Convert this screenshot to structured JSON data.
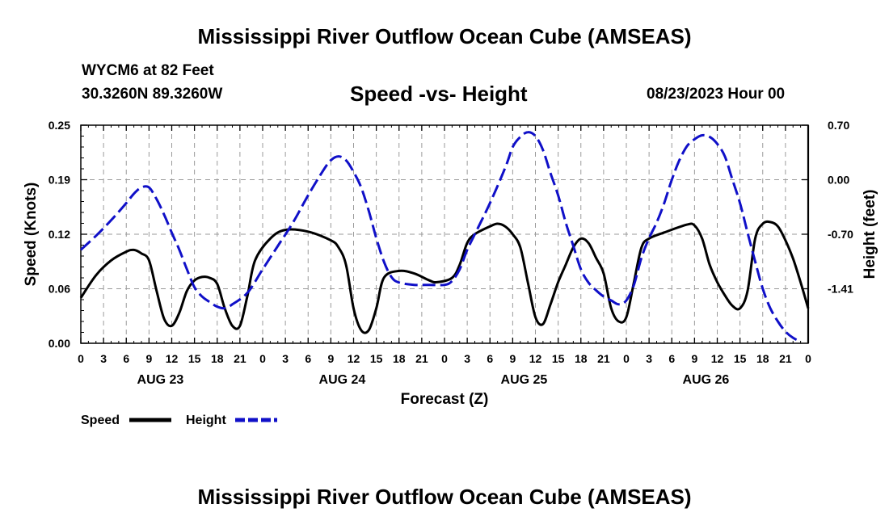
{
  "chart_data": {
    "type": "line",
    "title": "Mississippi River Outflow Ocean Cube (AMSEAS)",
    "footer_title": "Mississippi River Outflow Ocean Cube (AMSEAS)",
    "subtitle": "Speed -vs- Height",
    "station": "WYCM6 at 82 Feet",
    "coordinates": "30.3260N  89.3260W",
    "datetime": "08/23/2023 Hour 00",
    "xlabel": "Forecast (Z)",
    "ylabel_left": "Speed (Knots)",
    "ylabel_right": "Height (feet)",
    "xlim": [
      0,
      96
    ],
    "ylim_left": [
      0,
      0.25
    ],
    "ylim_right": [
      -2.1,
      0.7
    ],
    "x_tick_labels": [
      "0",
      "3",
      "6",
      "9",
      "12",
      "15",
      "18",
      "21",
      "0",
      "3",
      "6",
      "9",
      "12",
      "15",
      "18",
      "21",
      "0",
      "3",
      "6",
      "9",
      "12",
      "15",
      "18",
      "21",
      "0",
      "3",
      "6",
      "9",
      "12",
      "15",
      "18",
      "21",
      "0"
    ],
    "y_left_ticks": [
      "0.00",
      "0.06",
      "0.12",
      "0.19",
      "0.25"
    ],
    "y_right_ticks": [
      "-1.41",
      "-0.70",
      "0.00",
      "0.70"
    ],
    "date_labels": [
      "AUG 23",
      "AUG 24",
      "AUG 25",
      "AUG 26"
    ],
    "legend": [
      {
        "name": "Speed",
        "color": "#000000",
        "dash": "solid"
      },
      {
        "name": "Height",
        "color": "#1010c8",
        "dash": "dashed"
      }
    ],
    "series": [
      {
        "name": "Speed",
        "axis": "left",
        "color": "#000000",
        "points": [
          [
            0,
            0.052
          ],
          [
            2,
            0.078
          ],
          [
            4,
            0.095
          ],
          [
            6,
            0.105
          ],
          [
            7,
            0.107
          ],
          [
            8,
            0.103
          ],
          [
            9,
            0.095
          ],
          [
            10,
            0.06
          ],
          [
            11,
            0.028
          ],
          [
            12,
            0.02
          ],
          [
            13,
            0.035
          ],
          [
            14,
            0.06
          ],
          [
            15,
            0.072
          ],
          [
            16,
            0.076
          ],
          [
            17,
            0.075
          ],
          [
            18,
            0.068
          ],
          [
            19,
            0.04
          ],
          [
            20,
            0.02
          ],
          [
            21,
            0.02
          ],
          [
            22,
            0.055
          ],
          [
            23,
            0.095
          ],
          [
            25,
            0.12
          ],
          [
            27,
            0.13
          ],
          [
            30,
            0.128
          ],
          [
            33,
            0.118
          ],
          [
            34,
            0.11
          ],
          [
            35,
            0.09
          ],
          [
            36,
            0.04
          ],
          [
            37,
            0.015
          ],
          [
            38,
            0.015
          ],
          [
            39,
            0.04
          ],
          [
            40,
            0.075
          ],
          [
            42,
            0.083
          ],
          [
            44,
            0.08
          ],
          [
            46,
            0.072
          ],
          [
            47,
            0.07
          ],
          [
            49,
            0.075
          ],
          [
            50,
            0.09
          ],
          [
            51,
            0.115
          ],
          [
            52,
            0.125
          ],
          [
            54,
            0.134
          ],
          [
            55,
            0.137
          ],
          [
            56,
            0.134
          ],
          [
            57,
            0.125
          ],
          [
            58,
            0.11
          ],
          [
            59,
            0.07
          ],
          [
            60,
            0.03
          ],
          [
            61,
            0.022
          ],
          [
            62,
            0.045
          ],
          [
            63,
            0.07
          ],
          [
            64,
            0.09
          ],
          [
            65,
            0.11
          ],
          [
            66,
            0.12
          ],
          [
            67,
            0.115
          ],
          [
            68,
            0.098
          ],
          [
            69,
            0.08
          ],
          [
            70,
            0.04
          ],
          [
            71,
            0.025
          ],
          [
            72,
            0.03
          ],
          [
            73,
            0.07
          ],
          [
            74,
            0.11
          ],
          [
            75,
            0.12
          ],
          [
            77,
            0.127
          ],
          [
            80,
            0.136
          ],
          [
            81,
            0.135
          ],
          [
            82,
            0.12
          ],
          [
            83,
            0.09
          ],
          [
            84,
            0.07
          ],
          [
            85,
            0.055
          ],
          [
            86,
            0.043
          ],
          [
            87,
            0.04
          ],
          [
            88,
            0.06
          ],
          [
            89,
            0.12
          ],
          [
            90,
            0.137
          ],
          [
            91,
            0.139
          ],
          [
            92,
            0.134
          ],
          [
            93,
            0.118
          ],
          [
            94,
            0.097
          ],
          [
            95,
            0.07
          ],
          [
            96,
            0.04
          ]
        ]
      },
      {
        "name": "Height",
        "axis": "right",
        "color": "#1010c8",
        "points": [
          [
            0,
            -0.9
          ],
          [
            2,
            -0.72
          ],
          [
            4,
            -0.52
          ],
          [
            6,
            -0.3
          ],
          [
            7,
            -0.18
          ],
          [
            8,
            -0.1
          ],
          [
            9,
            -0.1
          ],
          [
            10,
            -0.25
          ],
          [
            11,
            -0.45
          ],
          [
            12,
            -0.68
          ],
          [
            13,
            -0.9
          ],
          [
            14,
            -1.15
          ],
          [
            15,
            -1.38
          ],
          [
            16,
            -1.5
          ],
          [
            17,
            -1.57
          ],
          [
            18,
            -1.63
          ],
          [
            19,
            -1.65
          ],
          [
            20,
            -1.6
          ],
          [
            22,
            -1.45
          ],
          [
            24,
            -1.15
          ],
          [
            26,
            -0.85
          ],
          [
            28,
            -0.55
          ],
          [
            30,
            -0.2
          ],
          [
            32,
            0.12
          ],
          [
            33,
            0.25
          ],
          [
            34,
            0.3
          ],
          [
            35,
            0.25
          ],
          [
            36,
            0.1
          ],
          [
            37,
            -0.1
          ],
          [
            38,
            -0.4
          ],
          [
            39,
            -0.75
          ],
          [
            40,
            -1.05
          ],
          [
            41,
            -1.25
          ],
          [
            42,
            -1.32
          ],
          [
            44,
            -1.35
          ],
          [
            46,
            -1.35
          ],
          [
            48,
            -1.35
          ],
          [
            49,
            -1.3
          ],
          [
            50,
            -1.15
          ],
          [
            51,
            -0.9
          ],
          [
            52,
            -0.7
          ],
          [
            54,
            -0.3
          ],
          [
            56,
            0.15
          ],
          [
            57,
            0.42
          ],
          [
            58,
            0.55
          ],
          [
            59,
            0.61
          ],
          [
            60,
            0.56
          ],
          [
            61,
            0.38
          ],
          [
            62,
            0.08
          ],
          [
            63,
            -0.2
          ],
          [
            64,
            -0.55
          ],
          [
            65,
            -0.85
          ],
          [
            66,
            -1.15
          ],
          [
            67,
            -1.32
          ],
          [
            68,
            -1.42
          ],
          [
            69,
            -1.5
          ],
          [
            70,
            -1.55
          ],
          [
            71,
            -1.6
          ],
          [
            72,
            -1.55
          ],
          [
            73,
            -1.35
          ],
          [
            74,
            -1.0
          ],
          [
            75,
            -0.75
          ],
          [
            76,
            -0.55
          ],
          [
            77,
            -0.3
          ],
          [
            78,
            0.0
          ],
          [
            79,
            0.25
          ],
          [
            80,
            0.43
          ],
          [
            81,
            0.52
          ],
          [
            82,
            0.57
          ],
          [
            83,
            0.55
          ],
          [
            84,
            0.46
          ],
          [
            85,
            0.3
          ],
          [
            86,
            0.0
          ],
          [
            87,
            -0.3
          ],
          [
            88,
            -0.68
          ],
          [
            89,
            -1.05
          ],
          [
            90,
            -1.4
          ],
          [
            91,
            -1.65
          ],
          [
            92,
            -1.82
          ],
          [
            93,
            -1.95
          ],
          [
            94,
            -2.03
          ],
          [
            95,
            -2.08
          ]
        ]
      }
    ]
  }
}
